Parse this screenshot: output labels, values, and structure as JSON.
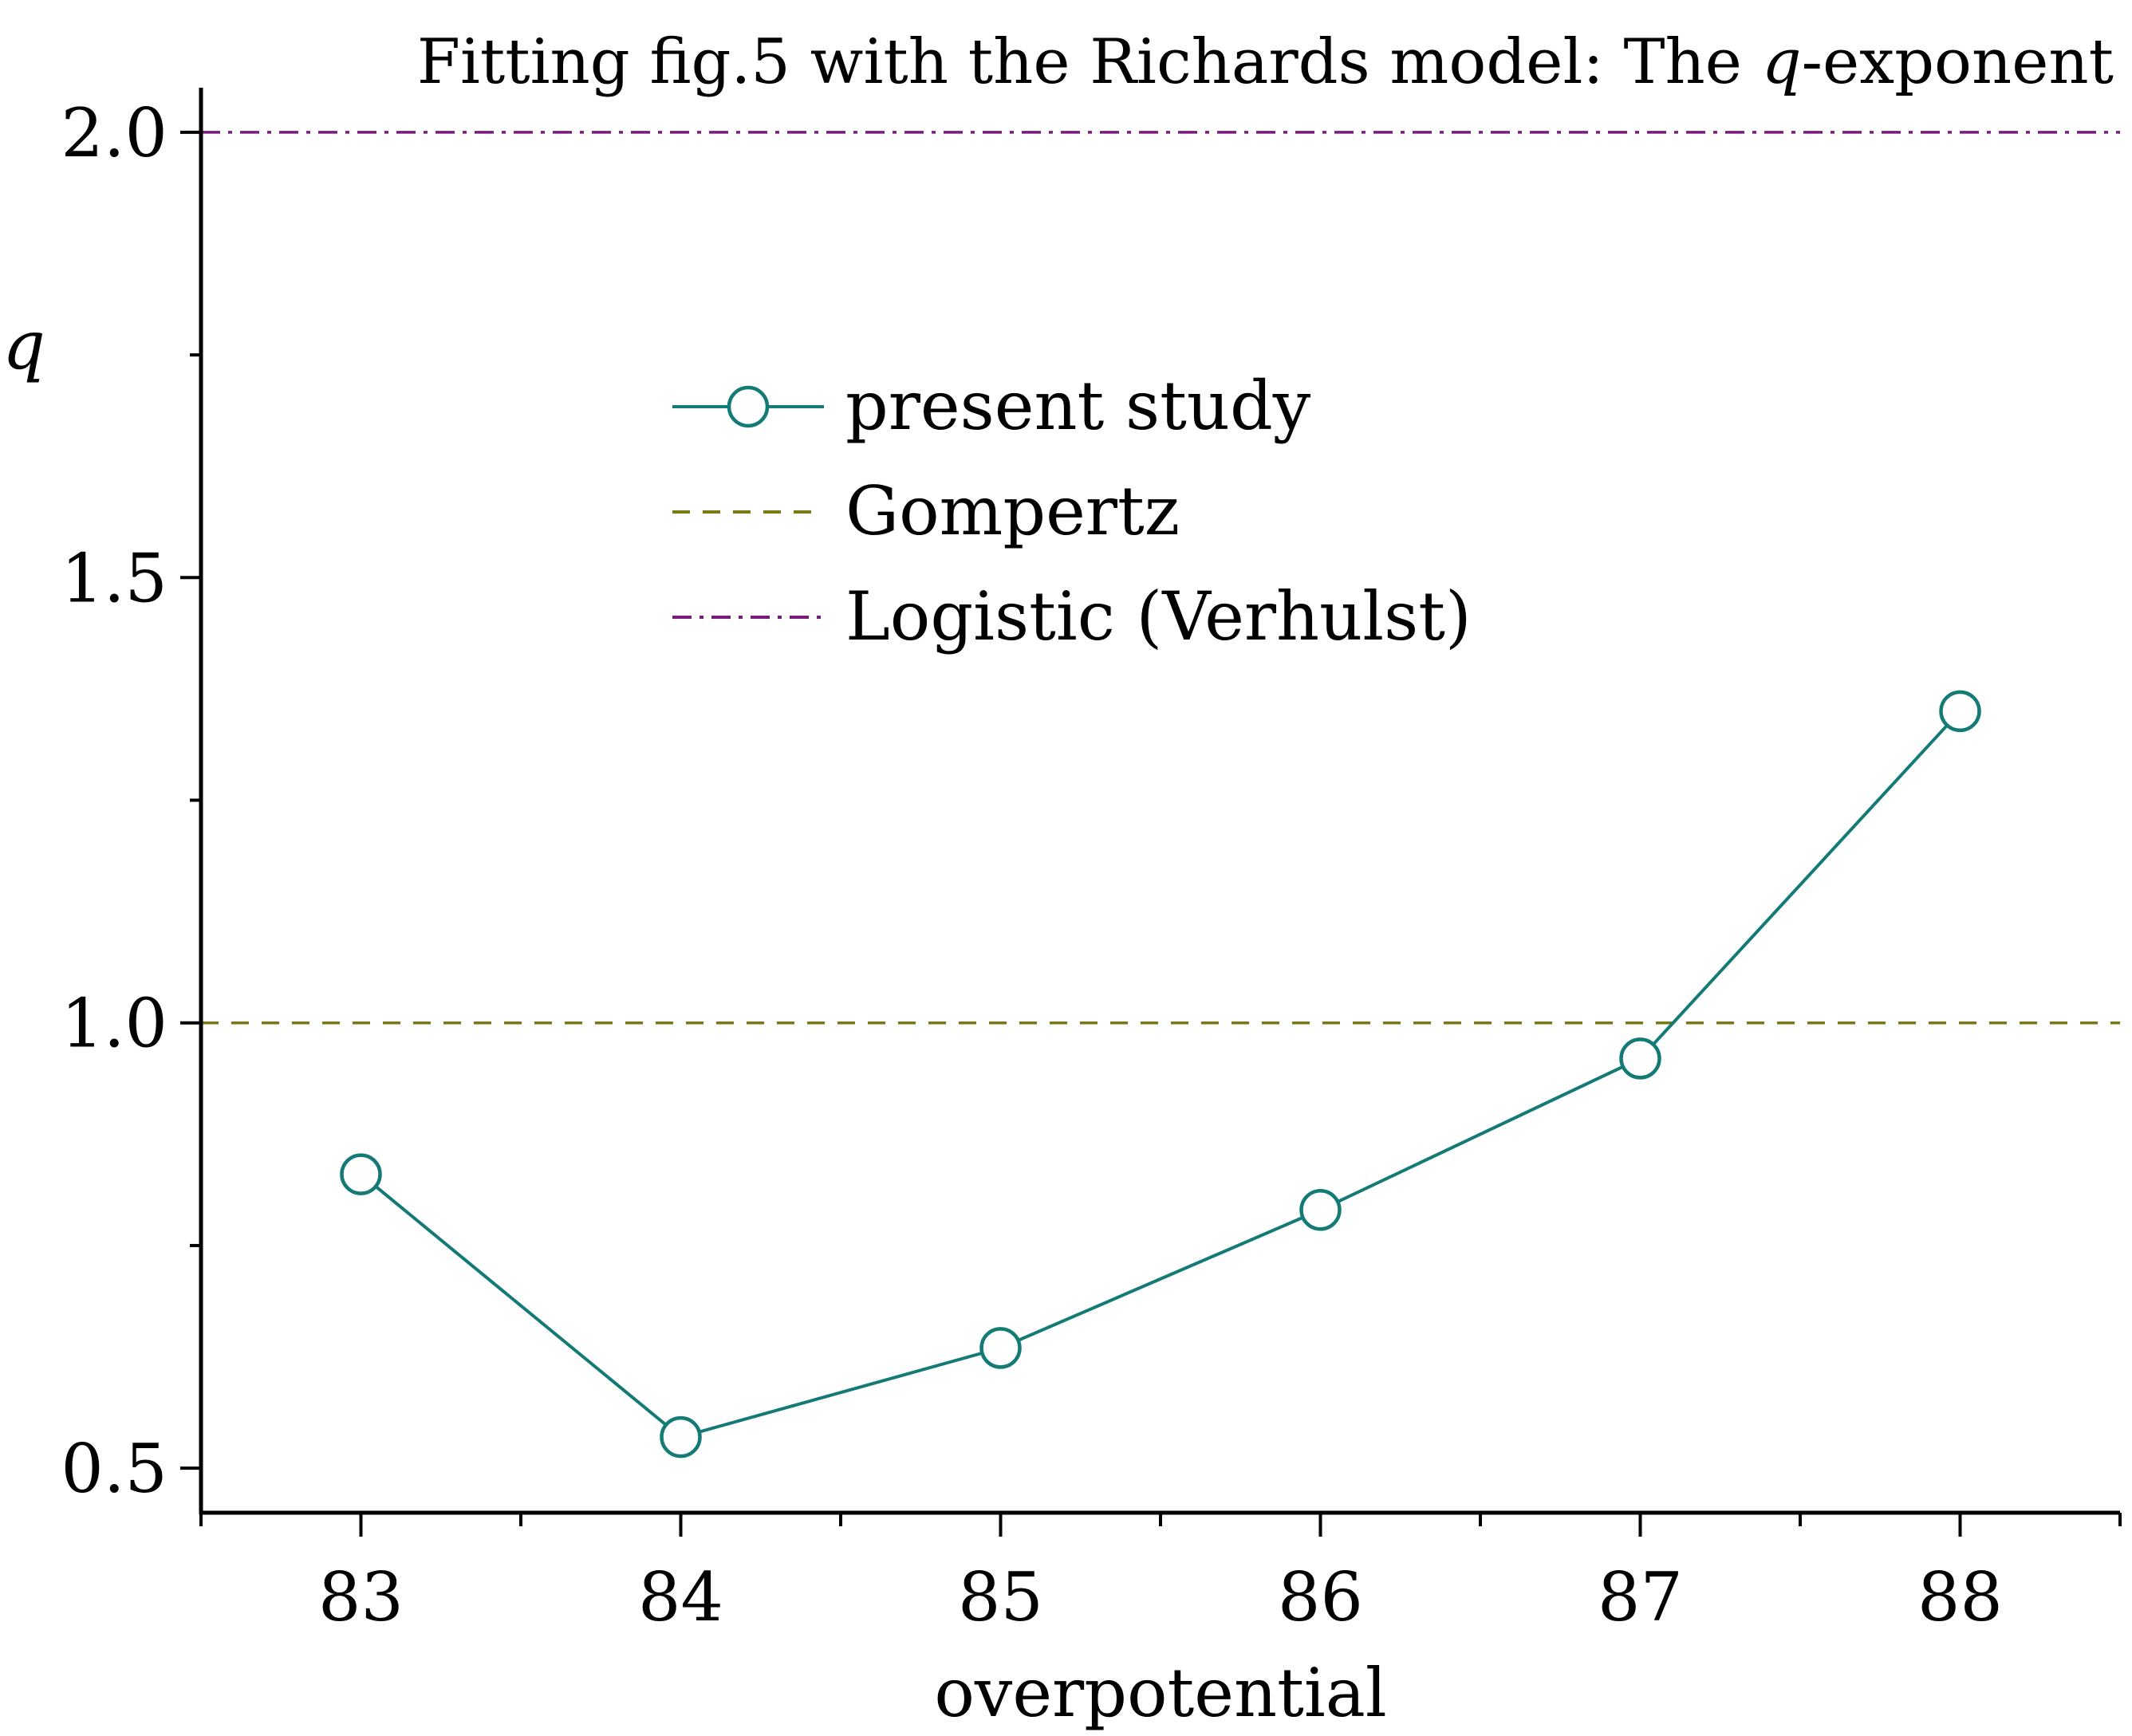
{
  "chart_data": {
    "type": "line",
    "title_parts": [
      "Fitting fig.5 with the Richards model: The ",
      "q",
      "-exponent"
    ],
    "xlabel": "overpotential",
    "ylabel": "q",
    "xlim": [
      82.5,
      88.5
    ],
    "ylim": [
      0.45,
      2.05
    ],
    "x_ticks": [
      "83",
      "84",
      "85",
      "86",
      "87",
      "88"
    ],
    "y_ticks": [
      "0.5",
      "1.0",
      "1.5",
      "2.0"
    ],
    "grid": false,
    "legend_position": "upper-center",
    "series": [
      {
        "name": "present study",
        "style": "line-with-open-circles",
        "color": "#137a75",
        "x": [
          83,
          84,
          85,
          86,
          87,
          88
        ],
        "y": [
          0.83,
          0.535,
          0.635,
          0.79,
          0.96,
          1.35
        ]
      }
    ],
    "reference_lines": [
      {
        "name": "Gompertz",
        "y": 1.0,
        "style": "dashed",
        "color": "#7a7a12"
      },
      {
        "name": "Logistic (Verhulst)",
        "y": 2.0,
        "style": "dash-dot",
        "color": "#7a1a7a"
      }
    ]
  }
}
